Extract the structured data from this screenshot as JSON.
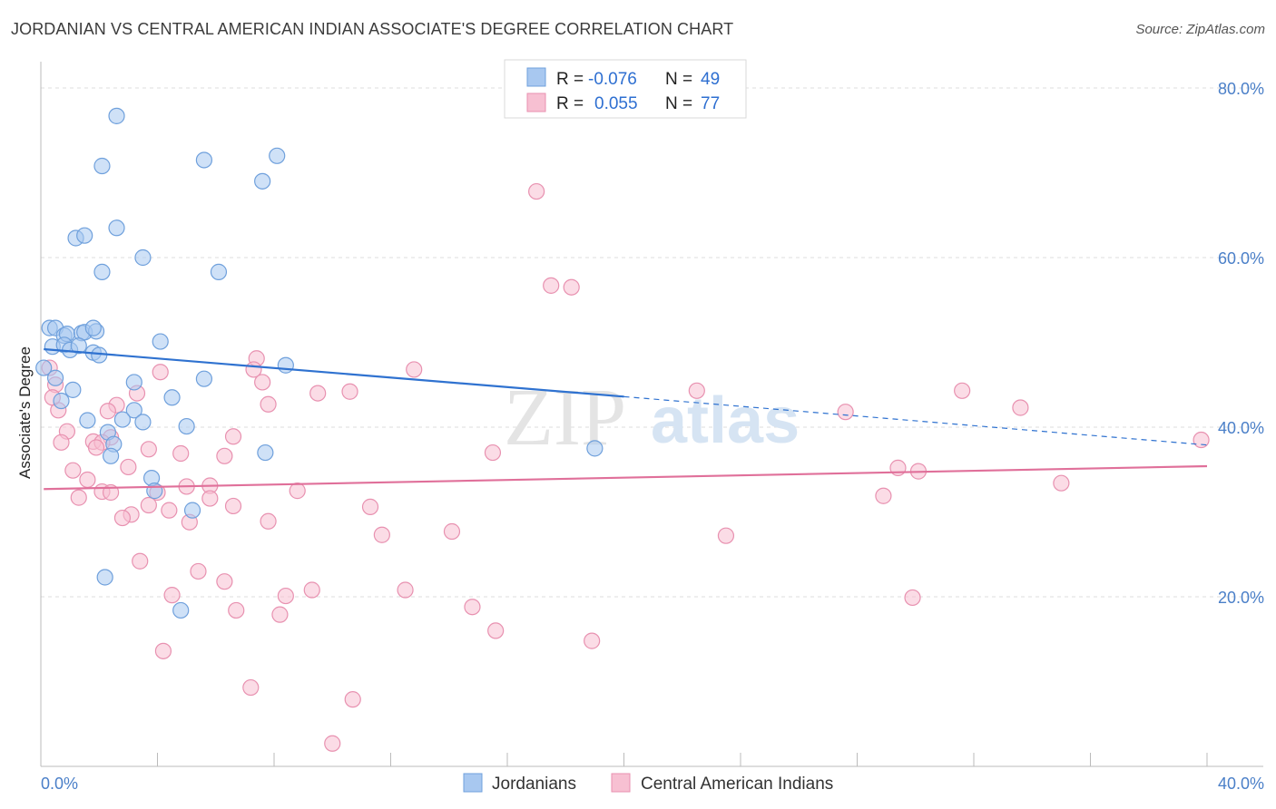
{
  "title": "JORDANIAN VS CENTRAL AMERICAN INDIAN ASSOCIATE'S DEGREE CORRELATION CHART",
  "source": "Source: ZipAtlas.com",
  "watermark": {
    "zip": "ZIP",
    "atlas": "atlas"
  },
  "legend": {
    "rows": [
      {
        "r_label": "R =",
        "r_value": "-0.076",
        "n_label": "N =",
        "n_value": "49"
      },
      {
        "r_label": "R =",
        "r_value": "0.055",
        "n_label": "N =",
        "n_value": "77"
      }
    ]
  },
  "bottom_legend": {
    "series1": "Jordanians",
    "series2": "Central American Indians"
  },
  "colors": {
    "jordanian_fill": "#a8c8f0",
    "jordanian_stroke": "#6fa0dc",
    "jordanian_line": "#2f72d0",
    "cai_fill": "#f7c0d2",
    "cai_stroke": "#e891b0",
    "cai_line": "#e0709a",
    "tick": "#4a7fc8",
    "grid": "#dddddd"
  },
  "chart_data": {
    "type": "scatter",
    "title": "JORDANIAN VS CENTRAL AMERICAN INDIAN ASSOCIATE'S DEGREE CORRELATION CHART",
    "xlabel": "",
    "ylabel": "Associate's Degree",
    "xlim": [
      0,
      40
    ],
    "ylim": [
      0,
      80
    ],
    "x_ticks": [
      "0.0%",
      "40.0%"
    ],
    "y_ticks": [
      "20.0%",
      "40.0%",
      "60.0%",
      "80.0%"
    ],
    "grid": "horizontal dashed",
    "series": [
      {
        "name": "Jordanians",
        "r": -0.076,
        "n": 49,
        "trend": {
          "x0": 0.1,
          "y0": 49.2,
          "x1": 20.0,
          "y1": 43.6,
          "dash_to_x": 40.0,
          "dash_to_y": 37.9
        },
        "points": [
          [
            2.6,
            76.7
          ],
          [
            2.1,
            70.8
          ],
          [
            5.6,
            71.5
          ],
          [
            8.1,
            72.0
          ],
          [
            7.6,
            69.0
          ],
          [
            1.2,
            62.3
          ],
          [
            1.5,
            62.6
          ],
          [
            2.6,
            63.5
          ],
          [
            3.5,
            60.0
          ],
          [
            2.1,
            58.3
          ],
          [
            6.1,
            58.3
          ],
          [
            0.3,
            51.7
          ],
          [
            0.5,
            51.7
          ],
          [
            0.8,
            50.8
          ],
          [
            0.9,
            51.0
          ],
          [
            1.4,
            51.1
          ],
          [
            1.5,
            51.2
          ],
          [
            1.9,
            51.3
          ],
          [
            1.8,
            51.7
          ],
          [
            0.4,
            49.5
          ],
          [
            0.8,
            49.7
          ],
          [
            1.0,
            49.1
          ],
          [
            1.3,
            49.6
          ],
          [
            1.8,
            48.8
          ],
          [
            2.0,
            48.5
          ],
          [
            4.1,
            50.1
          ],
          [
            8.4,
            47.3
          ],
          [
            0.5,
            45.8
          ],
          [
            1.1,
            44.4
          ],
          [
            3.2,
            45.3
          ],
          [
            5.6,
            45.7
          ],
          [
            0.7,
            43.1
          ],
          [
            4.5,
            43.5
          ],
          [
            3.2,
            42.0
          ],
          [
            2.8,
            40.9
          ],
          [
            3.5,
            40.6
          ],
          [
            1.6,
            40.8
          ],
          [
            5.0,
            40.1
          ],
          [
            2.3,
            39.4
          ],
          [
            2.5,
            38.0
          ],
          [
            2.4,
            36.6
          ],
          [
            7.7,
            37.0
          ],
          [
            19.0,
            37.5
          ],
          [
            3.8,
            34.0
          ],
          [
            3.9,
            32.5
          ],
          [
            5.2,
            30.2
          ],
          [
            2.2,
            22.3
          ],
          [
            4.8,
            18.4
          ],
          [
            0.1,
            47.0
          ]
        ]
      },
      {
        "name": "Central American Indians",
        "r": 0.055,
        "n": 77,
        "trend": {
          "x0": 0.1,
          "y0": 32.7,
          "x1": 40.0,
          "y1": 35.4
        },
        "points": [
          [
            17.0,
            67.8
          ],
          [
            17.5,
            56.7
          ],
          [
            18.2,
            56.5
          ],
          [
            7.4,
            48.1
          ],
          [
            4.1,
            46.5
          ],
          [
            7.3,
            46.8
          ],
          [
            12.8,
            46.8
          ],
          [
            7.6,
            45.3
          ],
          [
            0.3,
            47.0
          ],
          [
            0.5,
            45.0
          ],
          [
            3.3,
            44.0
          ],
          [
            9.5,
            44.0
          ],
          [
            10.6,
            44.2
          ],
          [
            22.5,
            44.3
          ],
          [
            31.6,
            44.3
          ],
          [
            7.8,
            42.7
          ],
          [
            2.6,
            42.6
          ],
          [
            0.6,
            42.0
          ],
          [
            2.3,
            41.9
          ],
          [
            27.6,
            41.8
          ],
          [
            33.6,
            42.3
          ],
          [
            0.9,
            39.5
          ],
          [
            2.4,
            38.8
          ],
          [
            6.6,
            38.9
          ],
          [
            1.8,
            38.3
          ],
          [
            0.7,
            38.2
          ],
          [
            2.1,
            38.2
          ],
          [
            3.7,
            37.4
          ],
          [
            4.8,
            36.9
          ],
          [
            6.3,
            36.6
          ],
          [
            15.5,
            37.0
          ],
          [
            3.0,
            35.3
          ],
          [
            1.1,
            34.9
          ],
          [
            1.6,
            33.8
          ],
          [
            5.8,
            33.1
          ],
          [
            5.0,
            33.0
          ],
          [
            29.4,
            35.2
          ],
          [
            30.1,
            34.8
          ],
          [
            35.0,
            33.4
          ],
          [
            39.8,
            38.5
          ],
          [
            2.1,
            32.4
          ],
          [
            2.4,
            32.3
          ],
          [
            1.3,
            31.7
          ],
          [
            5.8,
            31.6
          ],
          [
            8.8,
            32.5
          ],
          [
            4.0,
            32.3
          ],
          [
            3.7,
            30.8
          ],
          [
            6.6,
            30.7
          ],
          [
            11.3,
            30.6
          ],
          [
            28.9,
            31.9
          ],
          [
            3.1,
            29.7
          ],
          [
            2.8,
            29.3
          ],
          [
            4.4,
            30.2
          ],
          [
            5.1,
            28.8
          ],
          [
            7.8,
            28.9
          ],
          [
            14.1,
            27.7
          ],
          [
            11.7,
            27.3
          ],
          [
            23.5,
            27.2
          ],
          [
            3.4,
            24.2
          ],
          [
            5.4,
            23.0
          ],
          [
            6.3,
            21.8
          ],
          [
            9.3,
            20.8
          ],
          [
            12.5,
            20.8
          ],
          [
            4.5,
            20.2
          ],
          [
            8.4,
            20.1
          ],
          [
            29.9,
            19.9
          ],
          [
            14.8,
            18.8
          ],
          [
            6.7,
            18.4
          ],
          [
            8.2,
            17.9
          ],
          [
            15.6,
            16.0
          ],
          [
            18.9,
            14.8
          ],
          [
            4.2,
            13.6
          ],
          [
            7.2,
            9.3
          ],
          [
            10.7,
            7.9
          ],
          [
            10.0,
            2.7
          ],
          [
            0.4,
            43.5
          ],
          [
            1.9,
            37.6
          ]
        ]
      }
    ]
  }
}
